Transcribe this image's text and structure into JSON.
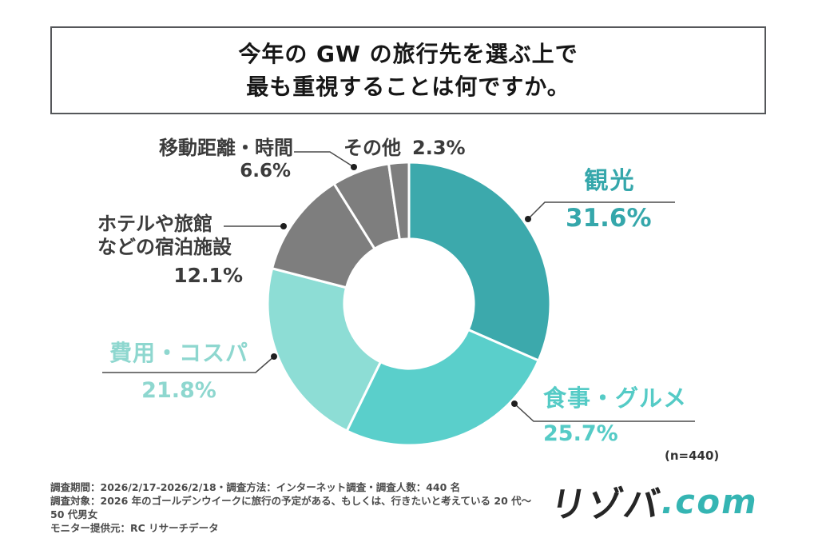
{
  "title": {
    "line1": "今年の GW の旅行先を選ぶ上で",
    "line2": "最も重視することは何ですか。"
  },
  "chart_data": {
    "type": "pie",
    "subtype": "donut",
    "title": "今年の GW の旅行先を選ぶ上で最も重視することは何ですか。",
    "sample_note": "(n=440)",
    "start_angle_deg": 0,
    "direction": "clockwise",
    "donut_hole_ratio": 0.458,
    "separator_color": "#ffffff",
    "segments": [
      {
        "label": "観光",
        "value": 31.6,
        "display": "31.6%",
        "color": "#3CA9AC",
        "label_color": "#35A7AB"
      },
      {
        "label": "食事・グルメ",
        "value": 25.7,
        "display": "25.7%",
        "color": "#5ACFCB",
        "label_color": "#55CBC6"
      },
      {
        "label": "費用・コスパ",
        "value": 21.8,
        "display": "21.8%",
        "color": "#8DDDD5",
        "label_color": "#8ED7CF"
      },
      {
        "label": "ホテルや旅館などの宿泊施設",
        "label_line1": "ホテルや旅館",
        "label_line2": "などの宿泊施設",
        "value": 12.1,
        "display": "12.1%",
        "color": "#7E7E7E",
        "label_color": "#3B3B3B"
      },
      {
        "label": "移動距離・時間",
        "value": 6.6,
        "display": "6.6%",
        "color": "#7E7E7E",
        "label_color": "#3B3B3B"
      },
      {
        "label": "その他",
        "value": 2.3,
        "display": "2.3%",
        "color": "#7E7E7E",
        "label_color": "#3B3B3B"
      }
    ]
  },
  "footer": {
    "line1": "調査期間：2026/2/17-2026/2/18・調査方法：インターネット調査・調査人数：440 名",
    "line2": "調査対象：2026 年のゴールデンウイークに旅行の予定がある、もしくは、行きたいと考えている 20 代〜 50 代男女",
    "line3": "モニター提供元：RC リサーチデータ"
  },
  "logo": {
    "text_black": "リゾバ",
    "text_teal": ".com",
    "teal": "#35B5B3"
  }
}
